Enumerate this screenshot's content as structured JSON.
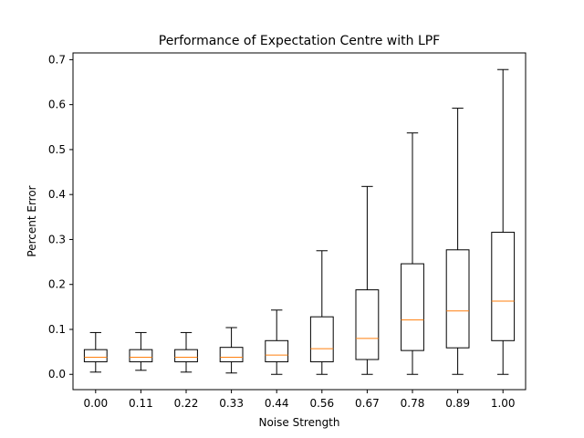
{
  "chart_data": {
    "type": "boxplot",
    "title": "Performance of Expectation Centre with LPF",
    "xlabel": "Noise Strength",
    "ylabel": "Percent Error",
    "ylim": [
      -0.034,
      0.715
    ],
    "yticks": [
      0.0,
      0.1,
      0.2,
      0.3,
      0.4,
      0.5,
      0.6,
      0.7
    ],
    "ytick_labels": [
      "0.0",
      "0.1",
      "0.2",
      "0.3",
      "0.4",
      "0.5",
      "0.6",
      "0.7"
    ],
    "categories": [
      "0.00",
      "0.11",
      "0.22",
      "0.33",
      "0.44",
      "0.56",
      "0.67",
      "0.78",
      "0.89",
      "1.00"
    ],
    "grid": false,
    "colors": {
      "box": "#000000",
      "median": "#ff7f0e"
    },
    "boxes": [
      {
        "whisker_low": 0.005,
        "q1": 0.028,
        "median": 0.038,
        "q3": 0.055,
        "whisker_high": 0.093
      },
      {
        "whisker_low": 0.009,
        "q1": 0.028,
        "median": 0.038,
        "q3": 0.055,
        "whisker_high": 0.093
      },
      {
        "whisker_low": 0.005,
        "q1": 0.028,
        "median": 0.038,
        "q3": 0.055,
        "whisker_high": 0.093
      },
      {
        "whisker_low": 0.003,
        "q1": 0.028,
        "median": 0.038,
        "q3": 0.06,
        "whisker_high": 0.104
      },
      {
        "whisker_low": 0.0,
        "q1": 0.028,
        "median": 0.043,
        "q3": 0.075,
        "whisker_high": 0.143
      },
      {
        "whisker_low": 0.0,
        "q1": 0.028,
        "median": 0.057,
        "q3": 0.128,
        "whisker_high": 0.275
      },
      {
        "whisker_low": 0.0,
        "q1": 0.033,
        "median": 0.08,
        "q3": 0.188,
        "whisker_high": 0.418
      },
      {
        "whisker_low": 0.0,
        "q1": 0.053,
        "median": 0.121,
        "q3": 0.246,
        "whisker_high": 0.537
      },
      {
        "whisker_low": 0.0,
        "q1": 0.059,
        "median": 0.141,
        "q3": 0.277,
        "whisker_high": 0.592
      },
      {
        "whisker_low": 0.0,
        "q1": 0.075,
        "median": 0.163,
        "q3": 0.316,
        "whisker_high": 0.678
      }
    ]
  }
}
